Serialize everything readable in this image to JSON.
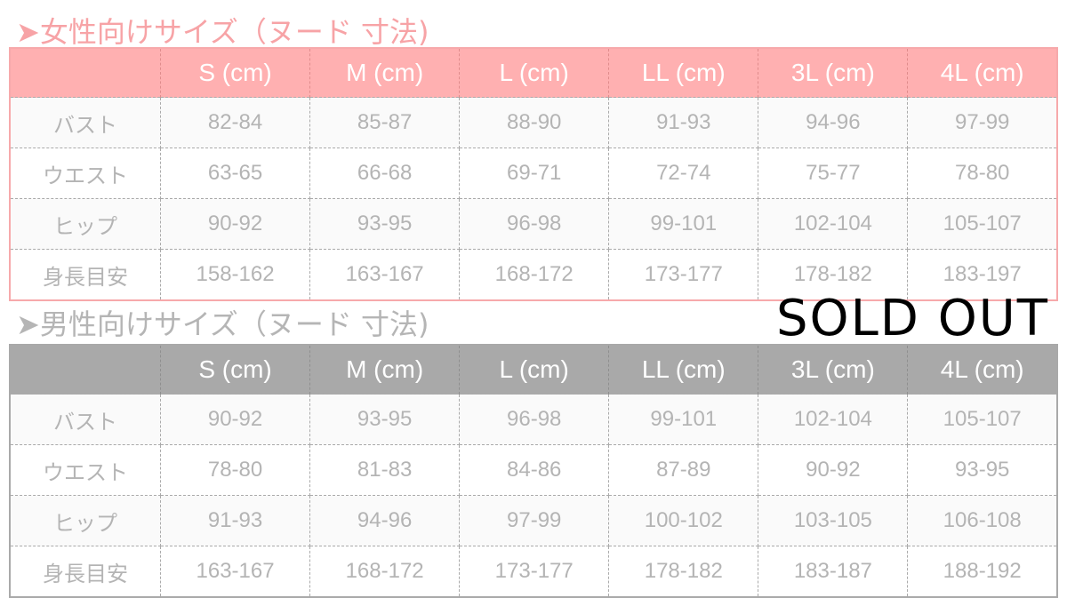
{
  "women": {
    "title": "➤女性向けサイズ（ヌード 寸法)",
    "accent": "#ffb0b1",
    "headers": [
      "",
      "S (cm)",
      "M (cm)",
      "L (cm)",
      "LL (cm)",
      "3L (cm)",
      "4L (cm)"
    ],
    "rows": [
      [
        "バスト",
        "82-84",
        "85-87",
        "88-90",
        "91-93",
        "94-96",
        "97-99"
      ],
      [
        "ウエスト",
        "63-65",
        "66-68",
        "69-71",
        "72-74",
        "75-77",
        "78-80"
      ],
      [
        "ヒップ",
        "90-92",
        "93-95",
        "96-98",
        "99-101",
        "102-104",
        "105-107"
      ],
      [
        "身長目安",
        "158-162",
        "163-167",
        "168-172",
        "173-177",
        "178-182",
        "183-197"
      ]
    ]
  },
  "men": {
    "title": "➤男性向けサイズ（ヌード 寸法)",
    "accent": "#a9a9a9",
    "headers": [
      "",
      "S (cm)",
      "M (cm)",
      "L (cm)",
      "LL (cm)",
      "3L (cm)",
      "4L (cm)"
    ],
    "rows": [
      [
        "バスト",
        "90-92",
        "93-95",
        "96-98",
        "99-101",
        "102-104",
        "105-107"
      ],
      [
        "ウエスト",
        "78-80",
        "81-83",
        "84-86",
        "87-89",
        "90-92",
        "93-95"
      ],
      [
        "ヒップ",
        "91-93",
        "94-96",
        "97-99",
        "100-102",
        "103-105",
        "106-108"
      ],
      [
        "身長目安",
        "163-167",
        "168-172",
        "173-177",
        "178-182",
        "183-187",
        "188-192"
      ]
    ]
  },
  "overlay": {
    "text": "SOLD OUT"
  }
}
